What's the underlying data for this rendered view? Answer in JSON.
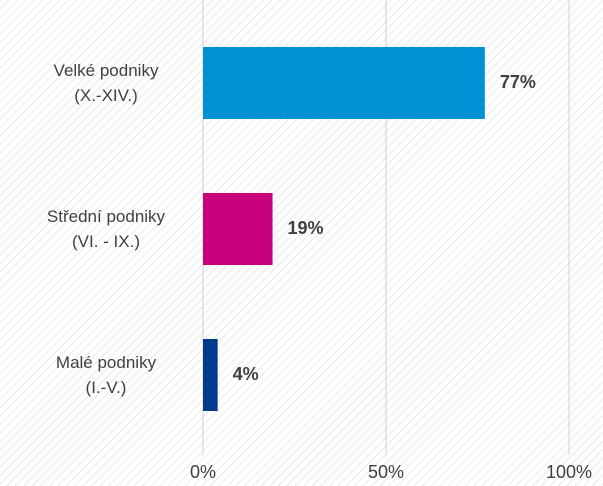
{
  "chart_data": {
    "type": "bar",
    "orientation": "horizontal",
    "categories": [
      "Velké podniky\n(X.-XIV.)",
      "Střední podniky\n(VI. - IX.)",
      "Malé podniky\n(I.-V.)"
    ],
    "values": [
      77,
      19,
      4
    ],
    "value_labels": [
      "77%",
      "19%",
      "4%"
    ],
    "colors": [
      "#0091d5",
      "#c8007e",
      "#003a8c"
    ],
    "xlim": [
      0,
      100
    ],
    "xticks": [
      {
        "value": 0,
        "label": "0%"
      },
      {
        "value": 50,
        "label": "50%"
      },
      {
        "value": 100,
        "label": "100%"
      }
    ],
    "grid": true
  }
}
